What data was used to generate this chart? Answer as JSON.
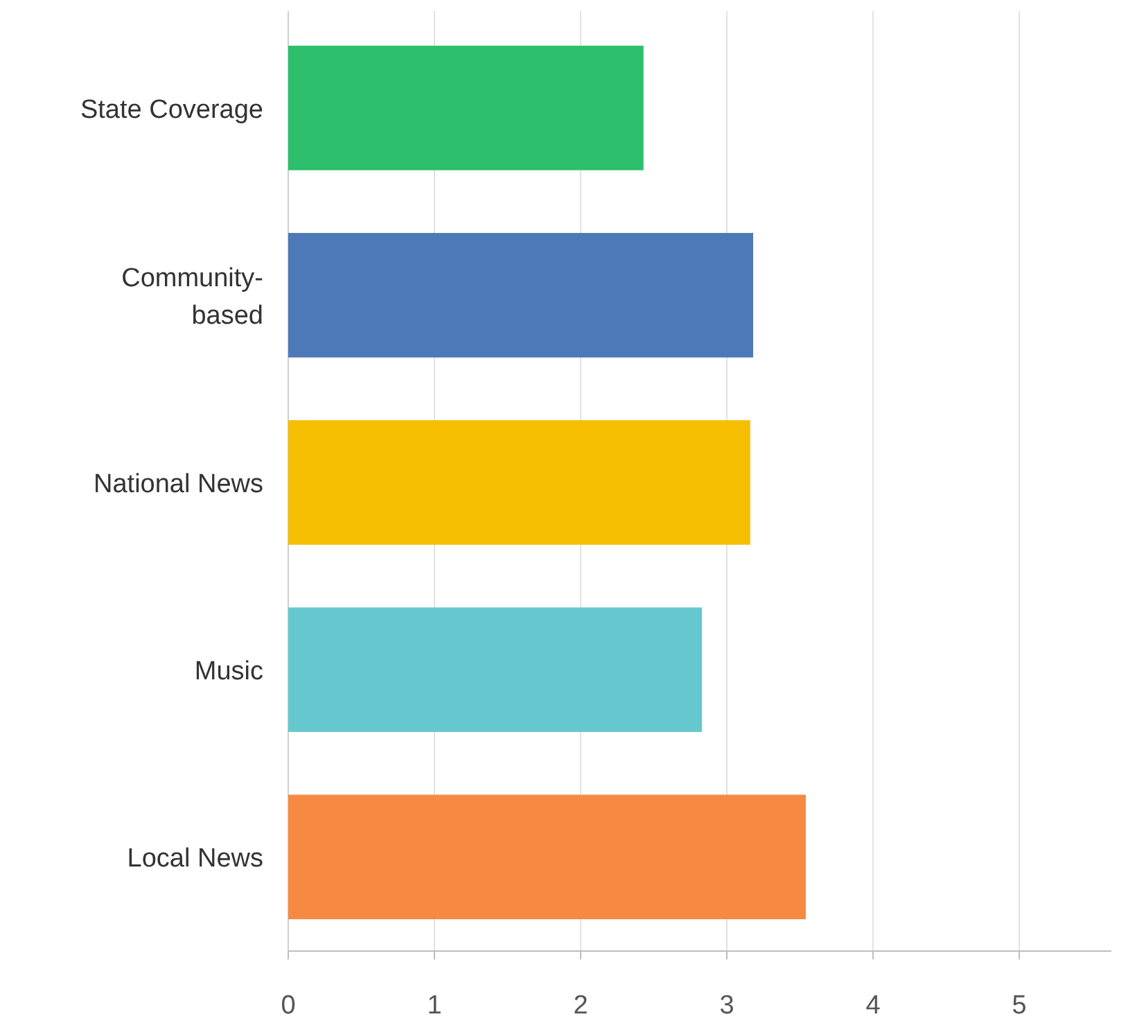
{
  "chart_data": {
    "type": "bar",
    "orientation": "horizontal",
    "categories": [
      "State Coverage",
      "Community-based",
      "National News",
      "Music",
      "Local News"
    ],
    "values": [
      2.43,
      3.18,
      3.16,
      2.83,
      3.54
    ],
    "colors": [
      "#2dbf6c",
      "#4e79b8",
      "#f5bf00",
      "#66c8cf",
      "#f68a43"
    ],
    "xlim": [
      0,
      5.63
    ],
    "xticks": [
      0,
      1,
      2,
      3,
      4,
      5
    ],
    "grid": "x"
  }
}
